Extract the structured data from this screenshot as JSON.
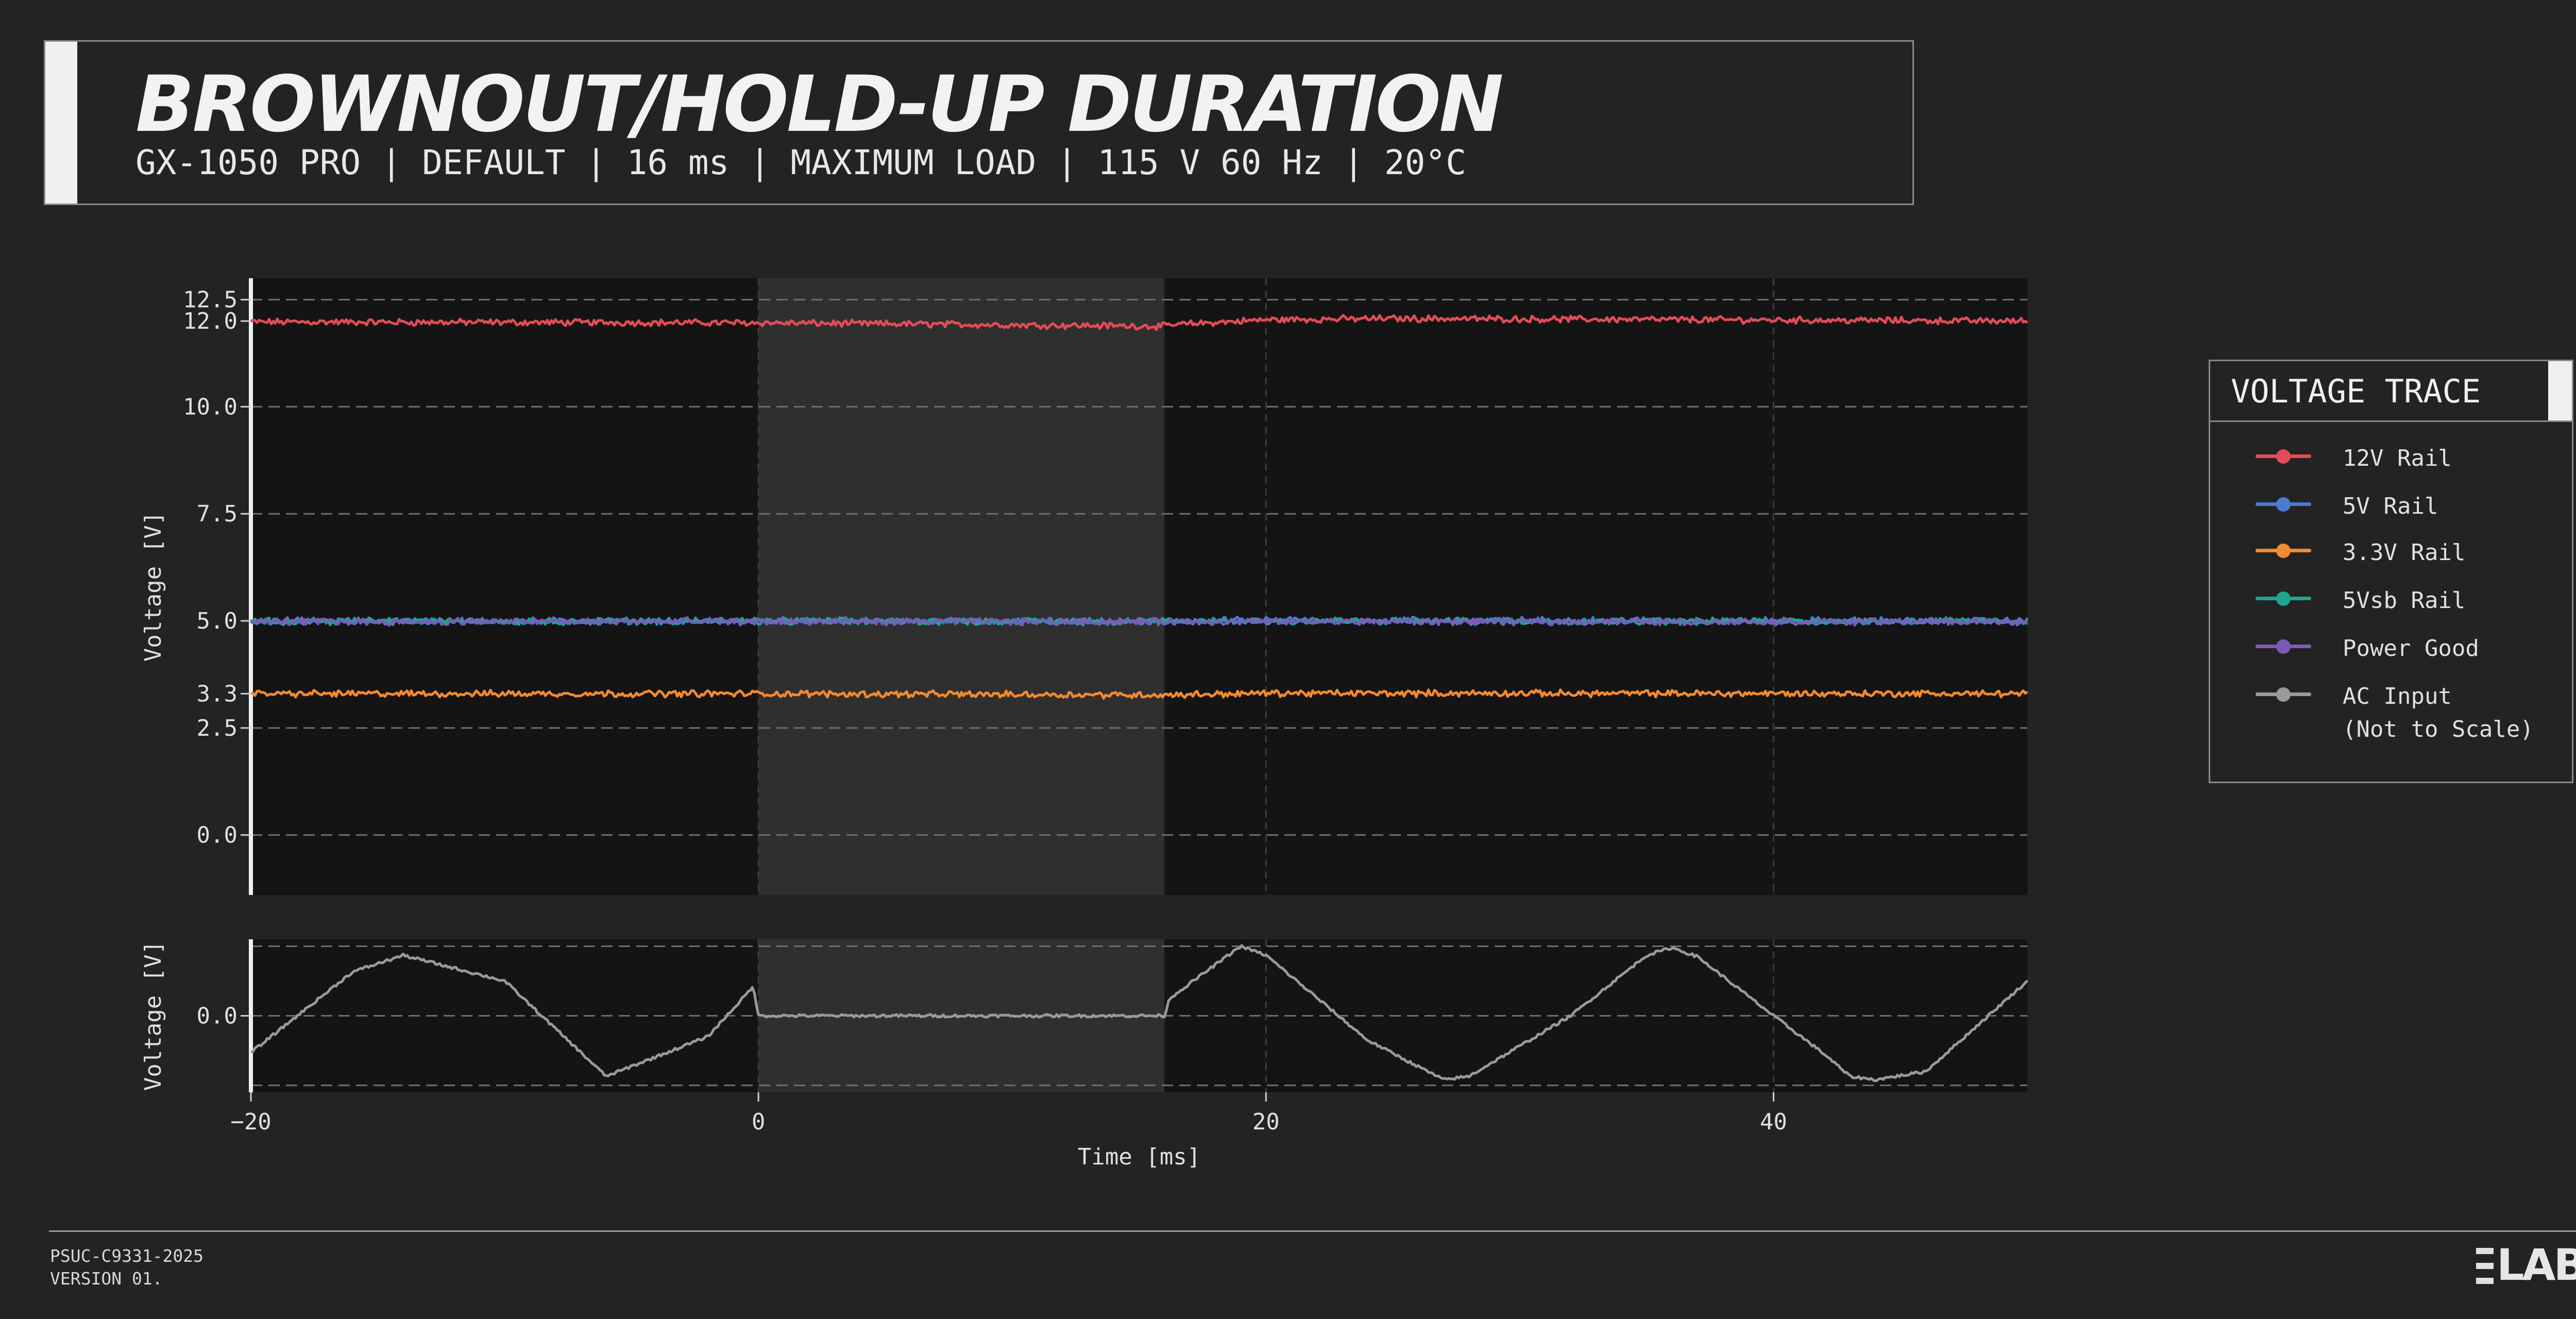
{
  "header": {
    "title": "BROWNOUT/HOLD-UP DURATION",
    "subtitle": "GX-1050 PRO | DEFAULT | 16 ms | MAXIMUM LOAD | 115 V 60 Hz | 20°C"
  },
  "legend": {
    "title": "VOLTAGE TRACE",
    "items": [
      {
        "label": "12V Rail",
        "color": "#e24c58"
      },
      {
        "label": "5V Rail",
        "color": "#4a7bd0"
      },
      {
        "label": "3.3V Rail",
        "color": "#f28a2e"
      },
      {
        "label": "5Vsb Rail",
        "color": "#1fa58e"
      },
      {
        "label": "Power Good",
        "color": "#7a5cb8"
      },
      {
        "label": "AC Input",
        "label2": "(Not to Scale)",
        "color": "#9a9a9a"
      }
    ]
  },
  "footer": {
    "code": "PSUC-C9331-2025",
    "version": "VERSION 01."
  },
  "logo": {
    "text": "LABS"
  },
  "chart_data": [
    {
      "type": "line",
      "ylabel": "Voltage [V]",
      "xlim": [
        -20,
        50
      ],
      "ylim": [
        -1.4,
        13.0
      ],
      "yticks": [
        0.0,
        2.5,
        3.3,
        5.0,
        7.5,
        10.0,
        12.0,
        12.5
      ],
      "ytick_labels": [
        "0.0",
        "2.5",
        "3.3",
        "5.0",
        "7.5",
        "10.0",
        "12.0",
        "12.5"
      ],
      "grid": true,
      "shaded_region": [
        0,
        16
      ],
      "series": [
        {
          "name": "12V Rail",
          "color": "#e24c58",
          "x": [
            -20,
            0,
            16,
            16.5,
            20,
            25,
            50
          ],
          "y": [
            11.98,
            11.96,
            11.88,
            11.92,
            12.03,
            12.06,
            12.0
          ]
        },
        {
          "name": "5V Rail",
          "color": "#4a7bd0",
          "x": [
            -20,
            0,
            16,
            20,
            50
          ],
          "y": [
            5.0,
            5.0,
            4.98,
            5.02,
            5.0
          ]
        },
        {
          "name": "3.3V Rail",
          "color": "#f28a2e",
          "x": [
            -20,
            0,
            16,
            20,
            50
          ],
          "y": [
            3.3,
            3.3,
            3.27,
            3.31,
            3.3
          ]
        },
        {
          "name": "5Vsb Rail",
          "color": "#1fa58e",
          "x": [
            -20,
            50
          ],
          "y": [
            4.99,
            4.99
          ]
        },
        {
          "name": "Power Good",
          "color": "#7a5cb8",
          "x": [
            -20,
            50
          ],
          "y": [
            4.98,
            4.98
          ]
        }
      ]
    },
    {
      "type": "line",
      "ylabel": "Voltage [V]",
      "xlabel": "Time [ms]",
      "xlim": [
        -20,
        50
      ],
      "xticks": [
        -20,
        0,
        20,
        40
      ],
      "xtick_labels": [
        "−20",
        "0",
        "20",
        "40"
      ],
      "ylim": [
        -1.1,
        1.1
      ],
      "yticks": [
        0.0
      ],
      "ytick_labels": [
        "0.0"
      ],
      "grid": true,
      "shaded_region": [
        0,
        16
      ],
      "series": [
        {
          "name": "AC Input",
          "color": "#9a9a9a",
          "x": [
            -20,
            -16,
            -14,
            -10,
            -6,
            -2,
            -0.2,
            0,
            16,
            16.2,
            19,
            20,
            24,
            27,
            28,
            32,
            35,
            36,
            37,
            40,
            42,
            43,
            44,
            46,
            50
          ],
          "y": [
            -0.53,
            0.63,
            0.87,
            0.5,
            -0.87,
            -0.3,
            0.42,
            0.0,
            0.0,
            0.25,
            1.0,
            0.87,
            -0.35,
            -0.92,
            -0.87,
            0.0,
            0.87,
            0.98,
            0.85,
            0.0,
            -0.55,
            -0.87,
            -0.92,
            -0.8,
            0.5
          ]
        }
      ]
    }
  ]
}
